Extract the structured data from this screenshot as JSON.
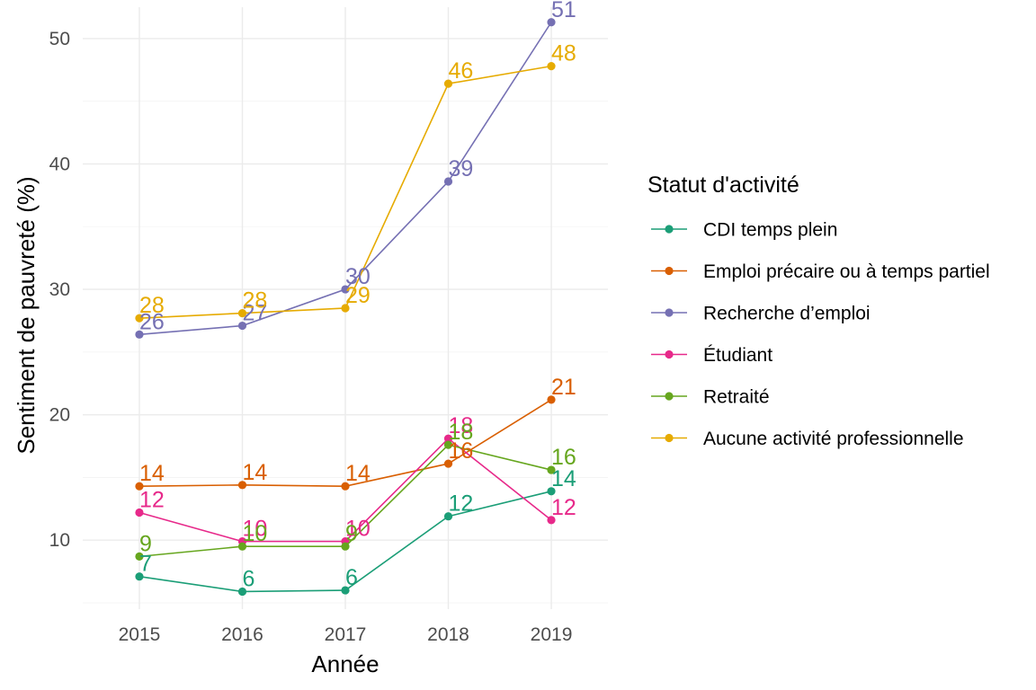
{
  "chart_data": {
    "type": "line",
    "x": [
      2015,
      2016,
      2017,
      2018,
      2019
    ],
    "xlabel": "Année",
    "ylabel": "Sentiment de pauvreté (%)",
    "ylim": [
      4.5,
      52.5
    ],
    "yticks": [
      10,
      20,
      30,
      40,
      50
    ],
    "grid": true,
    "legend": {
      "title": "Statut d'activité",
      "position": "right"
    },
    "series": [
      {
        "name": "CDI temps plein",
        "color": "#1b9e77",
        "values": [
          7.1,
          5.9,
          6.0,
          11.9,
          13.9
        ],
        "labels": [
          "7",
          "6",
          "6",
          "12",
          "14"
        ]
      },
      {
        "name": "Emploi précaire ou à temps partiel",
        "color": "#d95f02",
        "values": [
          14.3,
          14.4,
          14.3,
          16.1,
          21.2
        ],
        "labels": [
          "14",
          "14",
          "14",
          "16",
          "21"
        ]
      },
      {
        "name": "Recherche d’emploi",
        "color": "#7570b3",
        "values": [
          26.4,
          27.1,
          30.0,
          38.6,
          51.3
        ],
        "labels": [
          "26",
          "27",
          "30",
          "39",
          "51"
        ]
      },
      {
        "name": "Étudiant",
        "color": "#e7298a",
        "values": [
          12.2,
          9.9,
          9.9,
          18.1,
          11.6
        ],
        "labels": [
          "12",
          "10",
          "10",
          "18",
          "12"
        ]
      },
      {
        "name": "Retraité",
        "color": "#66a61e",
        "values": [
          8.7,
          9.5,
          9.5,
          17.6,
          15.6
        ],
        "labels": [
          "9",
          "10",
          "9",
          "18",
          "16"
        ]
      },
      {
        "name": "Aucune activité professionnelle",
        "color": "#e6ab02",
        "values": [
          27.7,
          28.1,
          28.5,
          46.4,
          47.8
        ],
        "labels": [
          "28",
          "28",
          "29",
          "46",
          "48"
        ]
      }
    ]
  }
}
